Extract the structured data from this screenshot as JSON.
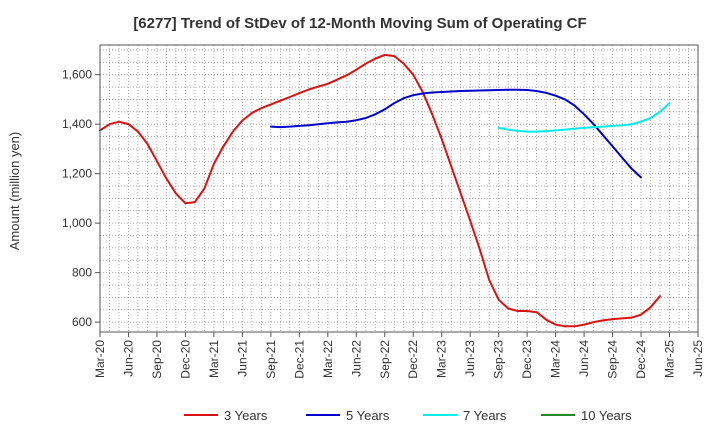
{
  "chart_data": {
    "type": "line",
    "title": "[6277]  Trend of StDev of 12-Month Moving Sum of Operating CF",
    "ylabel": "Amount (million yen)",
    "xlabel": "",
    "ylim": [
      560,
      1720
    ],
    "yticks": [
      600,
      800,
      1000,
      1200,
      1400,
      1600
    ],
    "ytick_labels": [
      "600",
      "800",
      "1,000",
      "1,200",
      "1,400",
      "1,600"
    ],
    "xtick_labels": [
      "Mar-20",
      "Jun-20",
      "Sep-20",
      "Dec-20",
      "Mar-21",
      "Jun-21",
      "Sep-21",
      "Dec-21",
      "Mar-22",
      "Jun-22",
      "Sep-22",
      "Dec-22",
      "Mar-23",
      "Jun-23",
      "Sep-23",
      "Dec-23",
      "Mar-24",
      "Jun-24",
      "Sep-24",
      "Dec-24",
      "Mar-25",
      "Jun-25"
    ],
    "grid": true,
    "legend_position": "bottom",
    "series": [
      {
        "name": "3 Years",
        "color": "#dd1111",
        "start_index": 0,
        "values": [
          1375,
          1400,
          1410,
          1400,
          1370,
          1320,
          1250,
          1180,
          1120,
          1080,
          1085,
          1140,
          1240,
          1310,
          1370,
          1415,
          1445,
          1465,
          1480,
          1495,
          1510,
          1525,
          1540,
          1552,
          1563,
          1580,
          1598,
          1620,
          1645,
          1665,
          1680,
          1675,
          1645,
          1600,
          1530,
          1440,
          1340,
          1230,
          1120,
          1010,
          895,
          770,
          690,
          655,
          645,
          645,
          640,
          610,
          590,
          583,
          583,
          590,
          600,
          607,
          612,
          615,
          618,
          630,
          660,
          705
        ]
      },
      {
        "name": "5 Years",
        "color": "#0000cc",
        "start_index": 18,
        "values": [
          1390,
          1388,
          1390,
          1393,
          1396,
          1400,
          1404,
          1407,
          1410,
          1416,
          1425,
          1440,
          1460,
          1485,
          1505,
          1517,
          1524,
          1528,
          1530,
          1532,
          1534,
          1535,
          1536,
          1537,
          1538,
          1539,
          1539,
          1538,
          1534,
          1527,
          1515,
          1500,
          1475,
          1440,
          1400,
          1355,
          1310,
          1265,
          1220,
          1185
        ]
      },
      {
        "name": "7 Years",
        "color": "#00eeee",
        "start_index": 42,
        "values": [
          1385,
          1378,
          1373,
          1370,
          1370,
          1372,
          1375,
          1378,
          1382,
          1385,
          1388,
          1390,
          1393,
          1395,
          1400,
          1410,
          1425,
          1450,
          1485
        ]
      },
      {
        "name": "10 Years",
        "color": "#228822",
        "start_index": 0,
        "values": []
      }
    ]
  }
}
